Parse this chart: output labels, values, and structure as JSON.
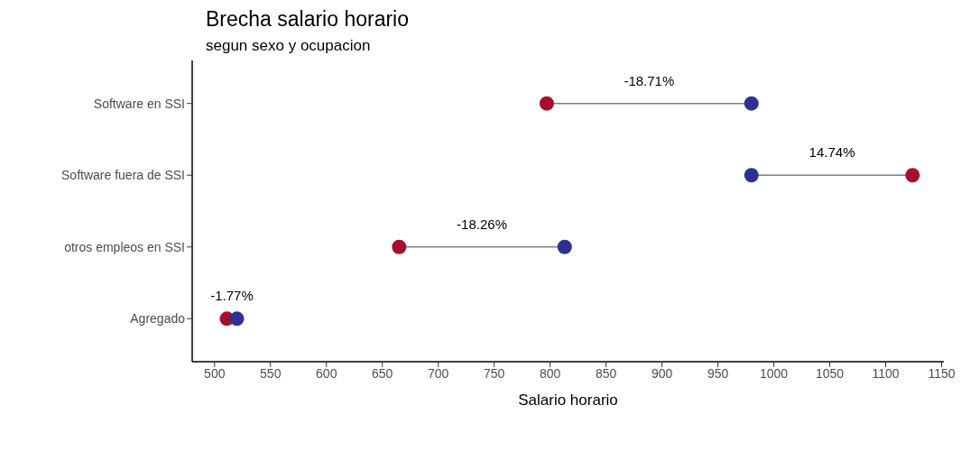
{
  "chart_data": {
    "type": "scatter",
    "orientation": "horizontal",
    "title": "Brecha salario horario",
    "subtitle": "segun sexo y ocupacion",
    "xlabel": "Salario horario",
    "categories": [
      "Software en SSI",
      "Software fuera de SSI",
      "otros empleos en SSI",
      "Agregado"
    ],
    "series": [
      {
        "color": "#a50f2d",
        "values": [
          797,
          1124,
          665,
          511
        ]
      },
      {
        "color": "#2e3192",
        "values": [
          980,
          980,
          813,
          520
        ]
      }
    ],
    "marker": "circle",
    "grid": false,
    "legend": false,
    "xlim": [
      480,
      1152
    ],
    "xticks": [
      500,
      550,
      600,
      650,
      700,
      750,
      800,
      850,
      900,
      950,
      1000,
      1050,
      1100,
      1150
    ],
    "annotations": [
      "-18.71%",
      "14.74%",
      "-18.26%",
      "-1.77%"
    ]
  }
}
